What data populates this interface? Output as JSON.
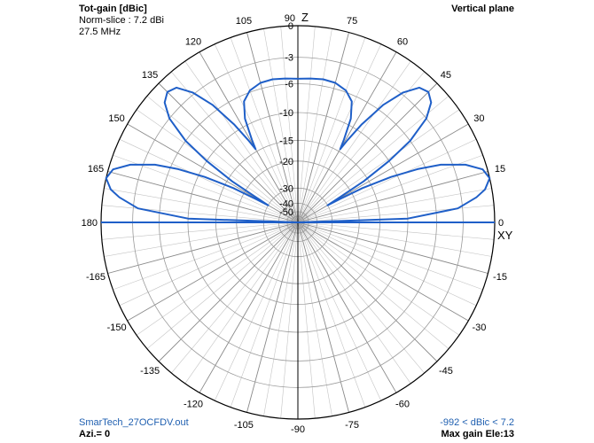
{
  "header": {
    "title": "Tot-gain [dBic]",
    "norm": "Norm-slice : 7.2 dBi",
    "freq": "27.5 MHz",
    "plane": "Vertical plane"
  },
  "footer": {
    "file": "SmarTech_27OCFDV.out",
    "azi": "Azi.= 0",
    "range": "-992 < dBic < 7.2",
    "maxgain": "Max gain Ele:13"
  },
  "colors": {
    "trace": "#1f5fc8",
    "grid": "#9a9a9a",
    "ring": "#000000"
  },
  "chart_data": {
    "type": "polar",
    "title": "Tot-gain [dBic]",
    "axis_labels": {
      "up": "Z",
      "right": "XY"
    },
    "radial_ticks": [
      0,
      -3,
      -6,
      -10,
      -15,
      -20,
      -30,
      -40,
      -50
    ],
    "angle_labels": [
      {
        "pos": 90,
        "text": "90"
      },
      {
        "pos": 75,
        "text": "75"
      },
      {
        "pos": 60,
        "text": "60"
      },
      {
        "pos": 45,
        "text": "45"
      },
      {
        "pos": 30,
        "text": "30"
      },
      {
        "pos": 15,
        "text": "15"
      },
      {
        "pos": 0,
        "text": "0"
      },
      {
        "pos": 105,
        "text": "105"
      },
      {
        "pos": 120,
        "text": "120"
      },
      {
        "pos": 135,
        "text": "135"
      },
      {
        "pos": 150,
        "text": "150"
      },
      {
        "pos": 165,
        "text": "165"
      },
      {
        "pos": 180,
        "text": "180"
      },
      {
        "pos": -15,
        "text": "-15"
      },
      {
        "pos": -30,
        "text": "-30"
      },
      {
        "pos": -45,
        "text": "-45"
      },
      {
        "pos": -60,
        "text": "-60"
      },
      {
        "pos": -75,
        "text": "-75"
      },
      {
        "pos": -90,
        "text": "-90"
      },
      {
        "pos": -105,
        "text": "-105"
      },
      {
        "pos": -120,
        "text": "-120"
      },
      {
        "pos": -135,
        "text": "-135"
      },
      {
        "pos": -150,
        "text": "-150"
      },
      {
        "pos": -165,
        "text": "-165"
      }
    ],
    "series": [
      {
        "points": [
          [
            0,
            -99
          ],
          [
            2,
            -10
          ],
          [
            5,
            -3.5
          ],
          [
            8,
            -1.5
          ],
          [
            10,
            -0.6
          ],
          [
            13,
            0
          ],
          [
            16,
            -0.4
          ],
          [
            19,
            -1.8
          ],
          [
            22,
            -4.2
          ],
          [
            24,
            -7
          ],
          [
            26,
            -11
          ],
          [
            28,
            -17
          ],
          [
            29,
            -24
          ],
          [
            30,
            -30
          ],
          [
            31,
            -24
          ],
          [
            32,
            -16
          ],
          [
            34,
            -10
          ],
          [
            36,
            -6
          ],
          [
            39,
            -3
          ],
          [
            42,
            -1.6
          ],
          [
            45,
            -1.1
          ],
          [
            48,
            -1.4
          ],
          [
            51,
            -2.8
          ],
          [
            54,
            -5.2
          ],
          [
            57,
            -9
          ],
          [
            59,
            -12.5
          ],
          [
            60,
            -14.5
          ],
          [
            61,
            -12.5
          ],
          [
            63,
            -9
          ],
          [
            66,
            -6.8
          ],
          [
            70,
            -5.8
          ],
          [
            75,
            -5.3
          ],
          [
            80,
            -5.2
          ],
          [
            85,
            -5.3
          ],
          [
            90,
            -5.4
          ],
          [
            95,
            -5.3
          ],
          [
            100,
            -5.2
          ],
          [
            105,
            -5.3
          ],
          [
            110,
            -5.8
          ],
          [
            114,
            -6.8
          ],
          [
            117,
            -9
          ],
          [
            119,
            -12.5
          ],
          [
            120,
            -14.5
          ],
          [
            121,
            -12.5
          ],
          [
            123,
            -9
          ],
          [
            126,
            -5.2
          ],
          [
            129,
            -2.8
          ],
          [
            132,
            -1.4
          ],
          [
            135,
            -1.1
          ],
          [
            138,
            -1.6
          ],
          [
            141,
            -3
          ],
          [
            144,
            -6
          ],
          [
            146,
            -10
          ],
          [
            148,
            -16
          ],
          [
            149,
            -24
          ],
          [
            150,
            -30
          ],
          [
            151,
            -24
          ],
          [
            152,
            -17
          ],
          [
            154,
            -11
          ],
          [
            156,
            -7
          ],
          [
            158,
            -4.2
          ],
          [
            161,
            -1.8
          ],
          [
            164,
            -0.4
          ],
          [
            167,
            0
          ],
          [
            170,
            -0.6
          ],
          [
            172,
            -1.5
          ],
          [
            175,
            -3.5
          ],
          [
            178,
            -10
          ],
          [
            180,
            -99
          ]
        ]
      }
    ]
  }
}
